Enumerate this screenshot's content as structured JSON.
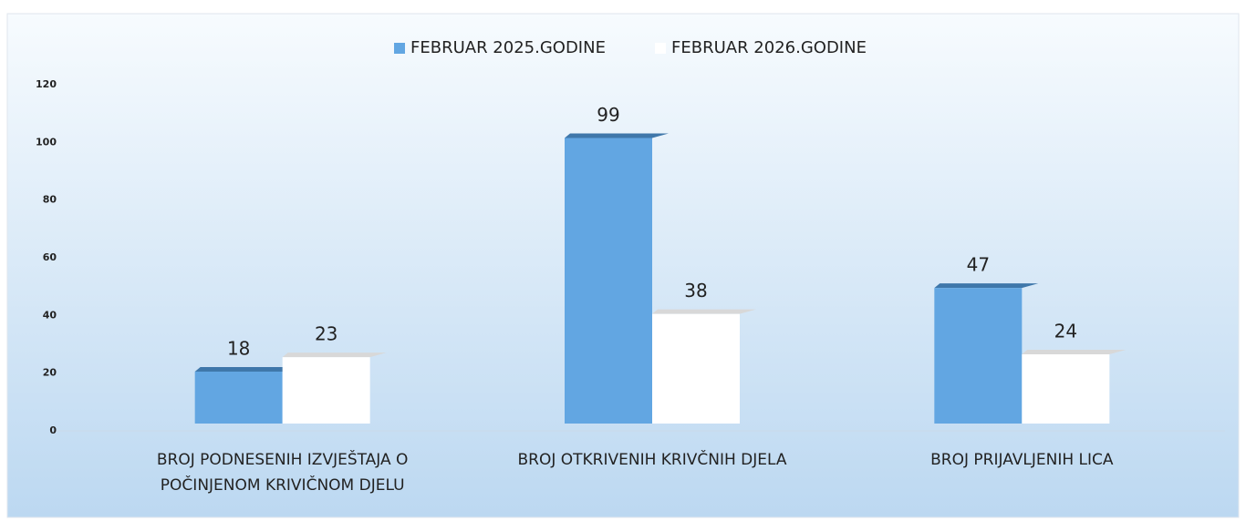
{
  "chart_data": {
    "type": "bar",
    "categories": [
      "BROJ PODNESENIH IZVJEŠTAJA O POČINJENOM KRIVIČNOM DJELU",
      "BROJ OTKRIVENIH KRIVČNIH DJELA",
      "BROJ PRIJAVLJENIH LICA"
    ],
    "series": [
      {
        "name": "FEBRUAR 2025.GODINE",
        "color": "#62a6e2",
        "values": [
          18,
          99,
          47
        ]
      },
      {
        "name": "FEBRUAR 2026.GODINE",
        "color": "#ffffff",
        "values": [
          23,
          38,
          24
        ]
      }
    ],
    "ylim": [
      0,
      120
    ],
    "yticks": [
      0,
      20,
      40,
      60,
      80,
      100,
      120
    ],
    "legend": "top"
  }
}
